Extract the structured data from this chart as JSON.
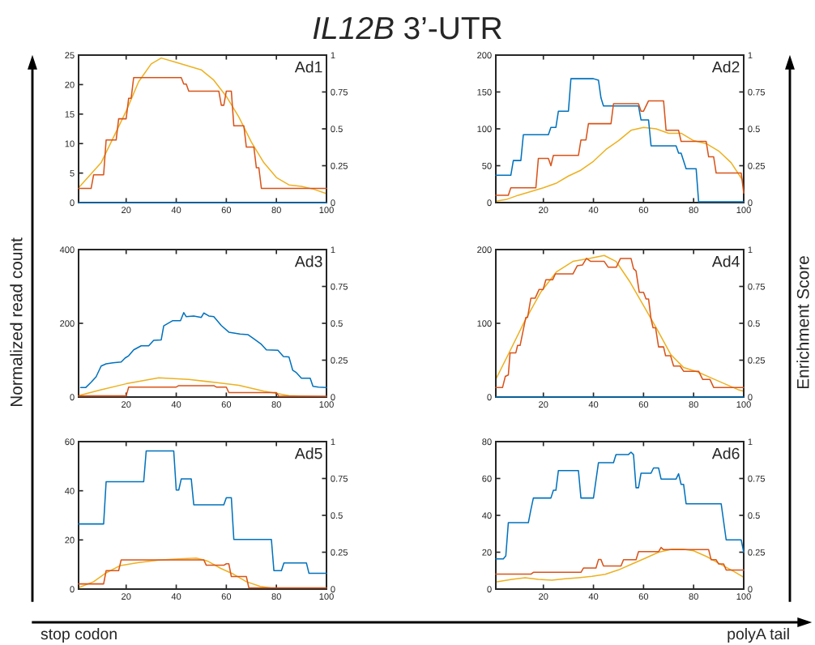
{
  "chart_data": [
    {
      "type": "line",
      "title": "Ad1",
      "ylabel": "Normalized read count",
      "y2label": "Enrichment Score",
      "annotations": [
        "IL12B 3’-UTR",
        "stop codon",
        "polyA tail"
      ],
      "xlim": [
        1,
        100
      ],
      "xticks": [
        20,
        40,
        60,
        80,
        100
      ],
      "ylim": [
        0,
        25
      ],
      "yticks": [
        0,
        5,
        10,
        15,
        20,
        25
      ],
      "y2lim": [
        0,
        1
      ],
      "y2ticks": [
        0,
        0.25,
        0.5,
        0.75,
        1
      ],
      "series": [
        {
          "color": "#0072bd",
          "x": [
            1,
            100
          ],
          "values": [
            0,
            0
          ]
        },
        {
          "color": "#d95319",
          "x": [
            1,
            6,
            7,
            11,
            12,
            16,
            17,
            20,
            21,
            22,
            23,
            42,
            43,
            44,
            45,
            57,
            58,
            59,
            60,
            62,
            63,
            67,
            68,
            71,
            72,
            73,
            74,
            100
          ],
          "values": [
            2.4,
            2.4,
            4.7,
            4.7,
            10.6,
            10.6,
            14.2,
            14.2,
            17.7,
            17.7,
            21.2,
            21.2,
            20.1,
            20.1,
            18.9,
            18.9,
            16.5,
            16.5,
            18.9,
            18.9,
            13,
            13,
            9.4,
            9.4,
            5.9,
            5.9,
            2.4,
            2.4
          ]
        },
        {
          "color": "#edb120",
          "axis": "y2",
          "x": [
            1,
            10,
            20,
            25,
            30,
            34,
            40,
            50,
            55,
            60,
            65,
            70,
            75,
            80,
            85,
            90,
            95,
            100
          ],
          "values": [
            0.1,
            0.27,
            0.62,
            0.82,
            0.94,
            0.98,
            0.95,
            0.9,
            0.83,
            0.72,
            0.58,
            0.41,
            0.27,
            0.17,
            0.12,
            0.11,
            0.09,
            0.06
          ]
        }
      ]
    },
    {
      "type": "line",
      "title": "Ad2",
      "xlim": [
        1,
        100
      ],
      "xticks": [
        20,
        40,
        60,
        80,
        100
      ],
      "ylim": [
        0,
        200
      ],
      "yticks": [
        0,
        50,
        100,
        150,
        200
      ],
      "y2lim": [
        0,
        1
      ],
      "y2ticks": [
        0,
        0.25,
        0.5,
        0.75,
        1
      ],
      "series": [
        {
          "color": "#0072bd",
          "x": [
            1,
            7,
            8,
            11,
            12,
            22,
            23,
            25,
            26,
            30,
            31,
            40,
            42,
            43,
            44,
            58,
            59,
            62,
            63,
            73,
            74,
            75,
            77,
            81,
            82,
            100
          ],
          "values": [
            37,
            37,
            57,
            57,
            92,
            92,
            102,
            102,
            124,
            124,
            168,
            168,
            166,
            142,
            131,
            131,
            112,
            112,
            77,
            77,
            67,
            67,
            46,
            46,
            1,
            1
          ]
        },
        {
          "color": "#d95319",
          "x": [
            1,
            6,
            7,
            17,
            18,
            22,
            23,
            24,
            34,
            35,
            37,
            38,
            47,
            48,
            58,
            59,
            60,
            62,
            68,
            69,
            74,
            75,
            85,
            86,
            88,
            89,
            99,
            100
          ],
          "values": [
            10,
            10,
            20,
            20,
            60,
            60,
            50,
            64,
            64,
            85,
            85,
            107,
            107,
            134,
            134,
            124,
            124,
            138,
            138,
            98,
            98,
            83,
            83,
            62,
            62,
            40,
            40,
            13
          ]
        },
        {
          "color": "#edb120",
          "axis": "y2",
          "x": [
            1,
            5,
            10,
            20,
            25,
            30,
            35,
            40,
            45,
            50,
            55,
            60,
            65,
            70,
            75,
            80,
            85,
            90,
            95,
            100
          ],
          "values": [
            0.01,
            0.02,
            0.05,
            0.1,
            0.13,
            0.18,
            0.22,
            0.28,
            0.36,
            0.42,
            0.49,
            0.51,
            0.5,
            0.47,
            0.47,
            0.42,
            0.4,
            0.35,
            0.27,
            0.14
          ]
        }
      ]
    },
    {
      "type": "line",
      "title": "Ad3",
      "xlim": [
        1,
        100
      ],
      "xticks": [
        20,
        40,
        60,
        80,
        100
      ],
      "ylim": [
        0,
        400
      ],
      "yticks": [
        0,
        200,
        400
      ],
      "y2lim": [
        0,
        1
      ],
      "y2ticks": [
        0,
        0.25,
        0.5,
        0.75,
        1
      ],
      "series": [
        {
          "color": "#0072bd",
          "x": [
            1.8,
            3.9,
            6,
            8,
            10,
            12,
            14.7,
            18,
            19.6,
            21,
            23,
            26,
            29,
            31,
            34,
            35,
            38.5,
            41.7,
            43,
            44,
            47,
            50,
            51,
            53,
            55,
            58,
            61,
            65.5,
            68.7,
            71,
            74,
            76,
            80.6,
            82.8,
            85,
            86.5,
            88,
            90,
            93.5,
            94.6,
            96.8,
            100
          ],
          "values": [
            26,
            26,
            40,
            55,
            84,
            90,
            93,
            95,
            106,
            112,
            128,
            139,
            139,
            154,
            155,
            193,
            207,
            207,
            229,
            218,
            220,
            216,
            228,
            220,
            218,
            194,
            176,
            171,
            169,
            158,
            143,
            128,
            127,
            110,
            109,
            73,
            66,
            51,
            51,
            29,
            27,
            26
          ]
        },
        {
          "color": "#d95319",
          "x": [
            1,
            20,
            21,
            40,
            41,
            55,
            56,
            60,
            61,
            80,
            81,
            100
          ],
          "values": [
            3,
            3,
            27,
            27,
            31,
            31,
            27,
            27,
            12,
            12,
            2,
            2
          ]
        },
        {
          "color": "#edb120",
          "axis": "y2",
          "x": [
            1,
            10,
            20,
            33,
            45,
            55,
            65,
            75,
            85,
            100
          ],
          "values": [
            0.01,
            0.05,
            0.09,
            0.13,
            0.12,
            0.1,
            0.08,
            0.04,
            0.01,
            0
          ]
        }
      ]
    },
    {
      "type": "line",
      "title": "Ad4",
      "xlim": [
        1,
        100
      ],
      "xticks": [
        20,
        40,
        60,
        80,
        100
      ],
      "ylim": [
        0,
        200
      ],
      "yticks": [
        0,
        100,
        200
      ],
      "y2lim": [
        0,
        1
      ],
      "y2ticks": [
        0,
        0.25,
        0.5,
        0.75,
        1
      ],
      "series": [
        {
          "color": "#0072bd",
          "x": [
            1,
            100
          ],
          "values": [
            0,
            0
          ]
        },
        {
          "color": "#d95319",
          "x": [
            1,
            3.7,
            4.8,
            6,
            6.7,
            9,
            9.7,
            10.7,
            13,
            13.7,
            15,
            16.7,
            18.3,
            19.9,
            21,
            23.7,
            24.8,
            31.8,
            33.5,
            35.6,
            37.2,
            38.9,
            44.3,
            45.9,
            49.1,
            50.8,
            55,
            56,
            57,
            58.3,
            60,
            61,
            62,
            63,
            63.8,
            64.8,
            66,
            68,
            68.8,
            70.8,
            72,
            74.6,
            76,
            82,
            83.6,
            86.5,
            88,
            100
          ],
          "values": [
            13,
            13,
            28,
            30,
            60,
            60,
            70,
            70,
            108,
            108,
            134,
            134,
            146,
            146,
            159,
            159,
            167,
            167,
            178,
            179,
            188,
            184,
            184,
            176,
            176,
            188,
            188,
            174,
            171,
            142,
            142,
            133,
            133,
            106,
            94,
            94,
            68,
            68,
            56,
            56,
            42,
            42,
            35,
            35,
            24,
            24,
            13,
            13
          ]
        },
        {
          "color": "#edb120",
          "axis": "y2",
          "x": [
            1,
            6,
            12.4,
            18.9,
            25.3,
            31.8,
            38.3,
            44.3,
            49,
            54.6,
            60,
            65.4,
            70.8,
            76,
            81.6,
            87,
            92.4,
            97.8,
            100
          ],
          "values": [
            0.12,
            0.29,
            0.51,
            0.71,
            0.85,
            0.92,
            0.94,
            0.96,
            0.92,
            0.78,
            0.62,
            0.46,
            0.29,
            0.2,
            0.17,
            0.13,
            0.09,
            0.05,
            0.04
          ]
        }
      ]
    },
    {
      "type": "line",
      "title": "Ad5",
      "xlim": [
        1,
        100
      ],
      "xticks": [
        20,
        40,
        60,
        80,
        100
      ],
      "ylim": [
        0,
        60
      ],
      "yticks": [
        0,
        20,
        40,
        60
      ],
      "y2lim": [
        0,
        1
      ],
      "y2ticks": [
        0,
        0.25,
        0.5,
        0.75,
        1
      ],
      "series": [
        {
          "color": "#0072bd",
          "x": [
            1,
            11,
            12,
            27,
            28,
            39,
            40,
            41,
            42,
            46,
            47,
            59,
            60,
            62,
            63,
            78,
            79,
            82,
            83,
            92,
            93,
            100
          ],
          "values": [
            26.5,
            26.5,
            43.7,
            43.7,
            56.2,
            56.2,
            40.3,
            40.3,
            44.8,
            44.8,
            34.3,
            34.3,
            37.2,
            37.2,
            20.2,
            20.2,
            7.5,
            7.5,
            10.6,
            10.6,
            6.4,
            6.4
          ]
        },
        {
          "color": "#d95319",
          "x": [
            1,
            11,
            12,
            17,
            18,
            51,
            52,
            59,
            60,
            61,
            62,
            68,
            69,
            100
          ],
          "values": [
            2.1,
            2.1,
            7.5,
            7.5,
            11.9,
            11.9,
            9.7,
            9.7,
            10.3,
            10.3,
            5.1,
            5.1,
            0.5,
            0.5
          ]
        },
        {
          "color": "#edb120",
          "axis": "y2",
          "x": [
            1,
            7,
            12,
            17.7,
            25,
            33,
            41,
            48,
            52.5,
            57.8,
            63,
            68,
            73.6,
            79,
            100
          ],
          "values": [
            0.01,
            0.05,
            0.11,
            0.16,
            0.18,
            0.196,
            0.205,
            0.21,
            0.19,
            0.14,
            0.1,
            0.05,
            0.018,
            0.004,
            0
          ]
        }
      ]
    },
    {
      "type": "line",
      "title": "Ad6",
      "xlim": [
        1,
        100
      ],
      "xticks": [
        20,
        40,
        60,
        80,
        100
      ],
      "ylim": [
        0,
        80
      ],
      "yticks": [
        0,
        20,
        40,
        60,
        80
      ],
      "y2lim": [
        0,
        1
      ],
      "y2ticks": [
        0,
        0.25,
        0.5,
        0.75,
        1
      ],
      "series": [
        {
          "color": "#0072bd",
          "x": [
            1,
            4,
            5,
            6,
            14,
            15,
            16,
            23,
            24,
            25,
            26,
            34,
            35,
            40,
            42,
            48,
            49,
            54,
            55,
            56,
            57,
            58,
            59,
            63,
            64,
            66,
            67,
            73,
            74,
            75,
            76,
            77,
            91,
            93,
            99,
            100
          ],
          "values": [
            16.4,
            16.4,
            18,
            36,
            36,
            43,
            49.4,
            49.4,
            53.6,
            53.6,
            64.3,
            64.3,
            49.4,
            49.4,
            68.6,
            68.6,
            73,
            73,
            74.3,
            72.9,
            55,
            55,
            62.9,
            62.9,
            65.7,
            65.7,
            59.7,
            59.7,
            62.6,
            56.8,
            56.8,
            46.3,
            46.3,
            26.7,
            26.7,
            20
          ]
        },
        {
          "color": "#d95319",
          "x": [
            1,
            15,
            16,
            35,
            36,
            41,
            42,
            43,
            44,
            51,
            52,
            57,
            58,
            66,
            67,
            68,
            86,
            87,
            89,
            90,
            92,
            93,
            100
          ],
          "values": [
            8.1,
            8.1,
            9.1,
            9.1,
            11.4,
            11.4,
            16,
            16,
            12.5,
            12.5,
            15.9,
            15.9,
            20.3,
            20.3,
            22.6,
            21.4,
            21.4,
            15.9,
            15.9,
            13.6,
            13.6,
            10.3,
            10.3
          ]
        },
        {
          "color": "#edb120",
          "axis": "y2",
          "x": [
            1,
            7.4,
            12.7,
            18,
            23.4,
            28.7,
            34,
            39.4,
            44.7,
            50,
            55.4,
            60.8,
            66,
            71.4,
            75.7,
            80,
            85.3,
            90.6,
            96,
            100
          ],
          "values": [
            0.048,
            0.066,
            0.077,
            0.066,
            0.06,
            0.07,
            0.077,
            0.086,
            0.1,
            0.13,
            0.17,
            0.21,
            0.25,
            0.27,
            0.27,
            0.26,
            0.22,
            0.17,
            0.12,
            0.08
          ]
        }
      ]
    }
  ]
}
